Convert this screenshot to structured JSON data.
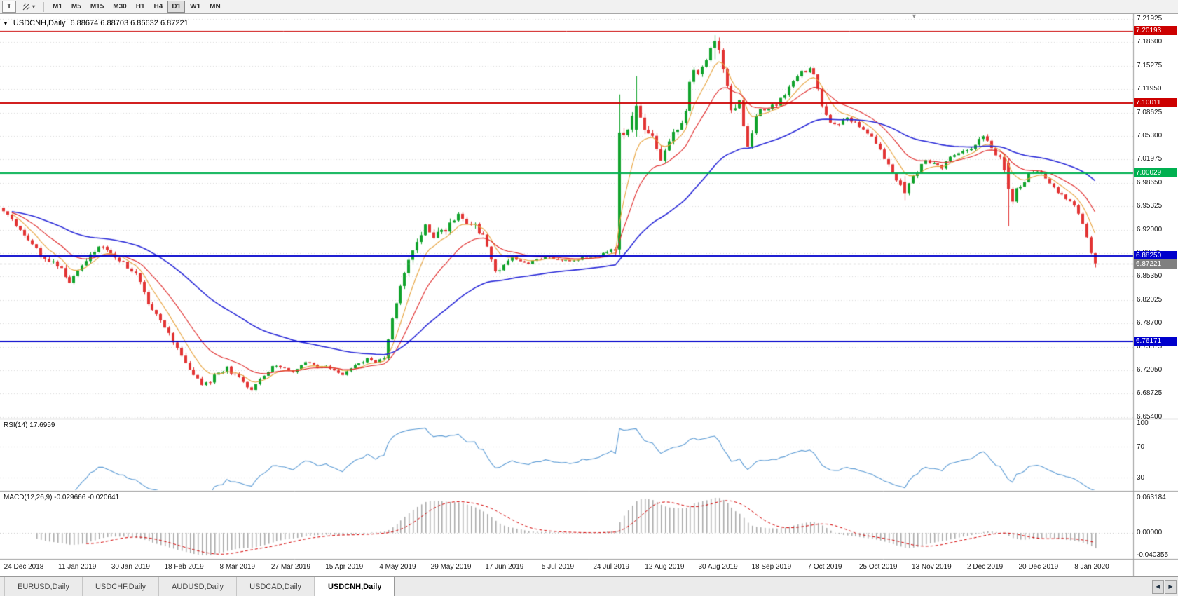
{
  "icons": {
    "dropdown_caret": "▾",
    "symbol_marker": "▼",
    "shift_marker": "▼",
    "scroll_left": "◀",
    "scroll_right": "▶"
  },
  "toolbar": {
    "text_tool_label": "T",
    "timeframes": [
      "M1",
      "M5",
      "M15",
      "M30",
      "H1",
      "H4",
      "D1",
      "W1",
      "MN"
    ],
    "active_timeframe": "D1"
  },
  "chart": {
    "title_symbol": "USDCNH,Daily",
    "title_ohlc": "6.88674 6.88703 6.86632 6.87221",
    "price_axis": [
      "7.21925",
      "7.18600",
      "7.15275",
      "7.11950",
      "7.08625",
      "7.05300",
      "7.01975",
      "6.98650",
      "6.95325",
      "6.92000",
      "6.88675",
      "6.85350",
      "6.82025",
      "6.78700",
      "6.75375",
      "6.72050",
      "6.68725",
      "6.65400"
    ],
    "date_axis": [
      "24 Dec 2018",
      "11 Jan 2019",
      "30 Jan 2019",
      "18 Feb 2019",
      "8 Mar 2019",
      "27 Mar 2019",
      "15 Apr 2019",
      "4 May 2019",
      "29 May 2019",
      "17 Jun 2019",
      "5 Jul 2019",
      "24 Jul 2019",
      "12 Aug 2019",
      "30 Aug 2019",
      "18 Sep 2019",
      "7 Oct 2019",
      "25 Oct 2019",
      "13 Nov 2019",
      "2 Dec 2019",
      "20 Dec 2019",
      "8 Jan 2020"
    ],
    "levels": [
      {
        "price": 7.20193,
        "label": "7.20193",
        "color": "#cc0000",
        "width": 1
      },
      {
        "price": 7.10011,
        "label": "7.10011",
        "color": "#cc0000",
        "width": 2
      },
      {
        "price": 7.00029,
        "label": "7.00029",
        "color": "#00b050",
        "width": 2
      },
      {
        "price": 6.8825,
        "label": "6.88250",
        "color": "#0000cc",
        "width": 2
      },
      {
        "price": 6.76171,
        "label": "6.76171",
        "color": "#0000cc",
        "width": 2
      }
    ],
    "current_price": {
      "price": 6.87221,
      "label": "6.87221",
      "color": "#808080"
    },
    "rsi": {
      "label": "RSI(14) 17.6959",
      "axis": [
        {
          "v": 100,
          "label": "100"
        },
        {
          "v": 70,
          "label": "70"
        },
        {
          "v": 30,
          "label": "30"
        }
      ]
    },
    "macd": {
      "label": "MACD(12,26,9) -0.029666 -0.020641",
      "axis": [
        {
          "v": 0.063184,
          "label": "0.063184"
        },
        {
          "v": 0,
          "label": "0.00000"
        },
        {
          "v": -0.040355,
          "label": "-0.040355"
        }
      ]
    }
  },
  "chart_data": {
    "type": "candlestick",
    "symbol": "USDCNH",
    "timeframe": "Daily",
    "bars": 265,
    "last_candle": {
      "open": 6.88674,
      "high": 6.88703,
      "low": 6.86632,
      "close": 6.87221
    },
    "up_color": "#11a32c",
    "down_color": "#e23434",
    "close_path": [
      [
        0,
        6.945
      ],
      [
        3,
        6.927
      ],
      [
        6,
        6.907
      ],
      [
        9,
        6.884
      ],
      [
        12,
        6.874
      ],
      [
        14,
        6.864
      ],
      [
        16,
        6.846
      ],
      [
        18,
        6.859
      ],
      [
        20,
        6.879
      ],
      [
        23,
        6.896
      ],
      [
        26,
        6.886
      ],
      [
        29,
        6.873
      ],
      [
        32,
        6.856
      ],
      [
        35,
        6.816
      ],
      [
        38,
        6.789
      ],
      [
        40,
        6.773
      ],
      [
        42,
        6.753
      ],
      [
        44,
        6.729
      ],
      [
        46,
        6.713
      ],
      [
        48,
        6.699
      ],
      [
        50,
        6.706
      ],
      [
        52,
        6.716
      ],
      [
        54,
        6.723
      ],
      [
        56,
        6.713
      ],
      [
        58,
        6.703
      ],
      [
        60,
        6.693
      ],
      [
        62,
        6.706
      ],
      [
        64,
        6.719
      ],
      [
        66,
        6.729
      ],
      [
        68,
        6.723
      ],
      [
        70,
        6.718
      ],
      [
        72,
        6.729
      ],
      [
        74,
        6.733
      ],
      [
        76,
        6.723
      ],
      [
        78,
        6.727
      ],
      [
        80,
        6.719
      ],
      [
        82,
        6.713
      ],
      [
        84,
        6.723
      ],
      [
        86,
        6.731
      ],
      [
        88,
        6.736
      ],
      [
        90,
        6.733
      ],
      [
        92,
        6.739
      ],
      [
        94,
        6.793
      ],
      [
        96,
        6.839
      ],
      [
        98,
        6.873
      ],
      [
        100,
        6.906
      ],
      [
        102,
        6.923
      ],
      [
        104,
        6.909
      ],
      [
        106,
        6.916
      ],
      [
        108,
        6.929
      ],
      [
        110,
        6.939
      ],
      [
        112,
        6.931
      ],
      [
        114,
        6.923
      ],
      [
        116,
        6.909
      ],
      [
        118,
        6.879
      ],
      [
        119,
        6.859
      ],
      [
        121,
        6.873
      ],
      [
        123,
        6.883
      ],
      [
        125,
        6.876
      ],
      [
        127,
        6.871
      ],
      [
        129,
        6.878
      ],
      [
        131,
        6.881
      ],
      [
        134,
        6.879
      ],
      [
        137,
        6.875
      ],
      [
        140,
        6.88
      ],
      [
        143,
        6.883
      ],
      [
        145,
        6.887
      ],
      [
        147,
        6.89
      ],
      [
        148,
        6.893
      ],
      [
        150,
        7.052
      ],
      [
        152,
        7.076
      ],
      [
        153,
        7.099
      ],
      [
        154,
        7.083
      ],
      [
        155,
        7.063
      ],
      [
        157,
        7.053
      ],
      [
        158,
        7.033
      ],
      [
        159,
        7.023
      ],
      [
        161,
        7.049
      ],
      [
        163,
        7.063
      ],
      [
        165,
        7.089
      ],
      [
        166,
        7.126
      ],
      [
        167,
        7.149
      ],
      [
        168,
        7.143
      ],
      [
        169,
        7.156
      ],
      [
        170,
        7.163
      ],
      [
        171,
        7.179
      ],
      [
        172,
        7.189
      ],
      [
        173,
        7.173
      ],
      [
        174,
        7.146
      ],
      [
        175,
        7.119
      ],
      [
        176,
        7.089
      ],
      [
        178,
        7.103
      ],
      [
        179,
        7.063
      ],
      [
        180,
        7.039
      ],
      [
        181,
        7.053
      ],
      [
        182,
        7.079
      ],
      [
        183,
        7.089
      ],
      [
        185,
        7.093
      ],
      [
        187,
        7.099
      ],
      [
        189,
        7.113
      ],
      [
        191,
        7.129
      ],
      [
        193,
        7.143
      ],
      [
        195,
        7.149
      ],
      [
        196,
        7.139
      ],
      [
        197,
        7.119
      ],
      [
        198,
        7.093
      ],
      [
        200,
        7.073
      ],
      [
        202,
        7.069
      ],
      [
        204,
        7.079
      ],
      [
        206,
        7.073
      ],
      [
        208,
        7.063
      ],
      [
        209,
        7.059
      ],
      [
        211,
        7.043
      ],
      [
        213,
        7.023
      ],
      [
        215,
        6.999
      ],
      [
        217,
        6.983
      ],
      [
        218,
        6.973
      ],
      [
        219,
        6.989
      ],
      [
        221,
        7.003
      ],
      [
        223,
        7.019
      ],
      [
        225,
        7.013
      ],
      [
        227,
        7.009
      ],
      [
        229,
        7.023
      ],
      [
        231,
        7.029
      ],
      [
        233,
        7.033
      ],
      [
        235,
        7.039
      ],
      [
        237,
        7.053
      ],
      [
        239,
        7.033
      ],
      [
        241,
        7.023
      ],
      [
        243,
        6.979
      ],
      [
        244,
        6.963
      ],
      [
        245,
        6.976
      ],
      [
        247,
        6.989
      ],
      [
        248,
        6.999
      ],
      [
        250,
        7.003
      ],
      [
        252,
        6.993
      ],
      [
        254,
        6.979
      ],
      [
        256,
        6.969
      ],
      [
        258,
        6.959
      ],
      [
        259,
        6.953
      ],
      [
        260,
        6.943
      ],
      [
        261,
        6.929
      ],
      [
        262,
        6.909
      ],
      [
        263,
        6.888
      ],
      [
        264,
        6.872
      ]
    ],
    "volatility_path": [
      [
        0,
        0.007
      ],
      [
        16,
        0.009
      ],
      [
        30,
        0.007
      ],
      [
        40,
        0.009
      ],
      [
        50,
        0.008
      ],
      [
        62,
        0.006
      ],
      [
        72,
        0.004
      ],
      [
        90,
        0.004
      ],
      [
        96,
        0.01
      ],
      [
        104,
        0.013
      ],
      [
        114,
        0.012
      ],
      [
        119,
        0.01
      ],
      [
        126,
        0.004
      ],
      [
        146,
        0.0035
      ],
      [
        150,
        0.014
      ],
      [
        156,
        0.012
      ],
      [
        166,
        0.01
      ],
      [
        172,
        0.012
      ],
      [
        176,
        0.013
      ],
      [
        186,
        0.007
      ],
      [
        200,
        0.0055
      ],
      [
        218,
        0.007
      ],
      [
        230,
        0.0045
      ],
      [
        243,
        0.009
      ],
      [
        250,
        0.004
      ],
      [
        258,
        0.0045
      ],
      [
        264,
        0.006
      ]
    ],
    "forced_candles": {
      "149": [
        6.892,
        7.112,
        6.885,
        7.058
      ],
      "153": [
        7.062,
        7.138,
        7.052,
        7.096
      ],
      "172": [
        7.178,
        7.1962,
        7.162,
        7.188
      ],
      "218": [
        6.988,
        6.996,
        6.962,
        6.972
      ],
      "243": [
        7.015,
        7.021,
        6.925,
        6.978
      ],
      "264": [
        6.88674,
        6.88703,
        6.86632,
        6.87221
      ]
    },
    "moving_averages": [
      {
        "period": 7,
        "color": "#e8a33d"
      },
      {
        "period": 16,
        "color": "#e02828"
      },
      {
        "period": 50,
        "color": "#2828d8"
      }
    ],
    "indicators": {
      "rsi_period": 14,
      "rsi_last": 17.6959,
      "rsi_levels": [
        70,
        30
      ],
      "macd_params": [
        12,
        26,
        9
      ],
      "macd_last": -0.029666,
      "macd_signal_last": -0.020641,
      "macd_range": [
        -0.040355,
        0.063184
      ],
      "rsi_color": "#5b9bd5",
      "macd_hist_color": "#a8a8a8",
      "macd_signal_color": "#d40000"
    }
  },
  "window": {
    "tabs": [
      "EURUSD,Daily",
      "USDCHF,Daily",
      "AUDUSD,Daily",
      "USDCAD,Daily",
      "USDCNH,Daily"
    ],
    "active_tab": "USDCNH,Daily"
  }
}
